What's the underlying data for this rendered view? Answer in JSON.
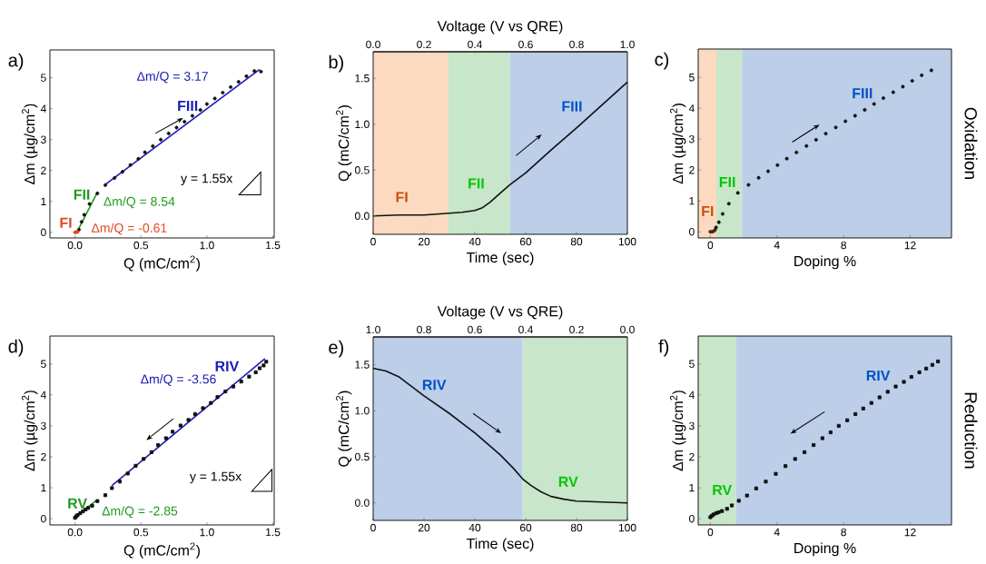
{
  "chart_data": [
    {
      "type": "scatter",
      "title": "a)",
      "xlabel": "Q (mC/cm$^{2}$)",
      "ylabel": "Δm (µg/cm$^{2}$)",
      "xlim": [
        -0.19,
        1.51
      ],
      "ylim": [
        -0.18,
        5.9
      ],
      "xticks": [
        {
          "value": 0,
          "label": "0.0"
        },
        {
          "value": 0.5,
          "label": "0.5"
        },
        {
          "value": 1,
          "label": "1.0"
        },
        {
          "value": 1.5,
          "label": "1.5"
        }
      ],
      "yticks": [
        0,
        1,
        2,
        3,
        4,
        5
      ],
      "series": [
        {
          "type": "scatter",
          "marker": "circle",
          "color": "#111111",
          "x": [
            0.03,
            0.05,
            0.07,
            0.11,
            0.17,
            0.23,
            0.3,
            0.36,
            0.42,
            0.48,
            0.53,
            0.59,
            0.65,
            0.71,
            0.77,
            0.83,
            0.89,
            0.95,
            1.0,
            1.06,
            1.12,
            1.18,
            1.24,
            1.3,
            1.36,
            1.41
          ],
          "values": [
            0.09,
            0.34,
            0.57,
            0.92,
            1.26,
            1.53,
            1.76,
            1.96,
            2.18,
            2.38,
            2.59,
            2.79,
            3.0,
            3.2,
            3.39,
            3.58,
            3.77,
            3.96,
            4.15,
            4.33,
            4.52,
            4.7,
            4.87,
            5.05,
            5.22,
            5.2
          ]
        },
        {
          "type": "scatter",
          "marker": "circle",
          "name": "FI",
          "color": "#e2461e",
          "x": [
            0,
            0.01,
            0.02
          ],
          "values": [
            0,
            0.01,
            0.02
          ]
        },
        {
          "type": "line",
          "name": "FII",
          "color": "#1f9a1f",
          "x": [
            0.02,
            0.17
          ],
          "values": [
            0.05,
            1.3
          ]
        },
        {
          "type": "line",
          "name": "FIII",
          "color": "#1c1cb4",
          "x": [
            0.23,
            1.4
          ],
          "values": [
            1.55,
            5.27
          ]
        }
      ],
      "annotations": [
        "Δm/Q = 3.17",
        "Δm/Q = 8.54",
        "Δm/Q = -0.61",
        "y = 1.55x"
      ]
    },
    {
      "type": "line",
      "title": "b)",
      "xlabel": "Time (sec)",
      "ylabel": "Q (mC/cm$^{2}$)",
      "x2label": "Voltage (V vs QRE)",
      "xlim": [
        0,
        100
      ],
      "ylim": [
        -0.2,
        1.79
      ],
      "x2lim": [
        0,
        1
      ],
      "xticks": [
        0,
        20,
        40,
        60,
        80,
        100
      ],
      "yticks": [
        {
          "value": 0,
          "label": "0.0"
        },
        {
          "value": 0.5,
          "label": "0.5"
        },
        {
          "value": 1,
          "label": "1.0"
        },
        {
          "value": 1.5,
          "label": "1.5"
        }
      ],
      "x2ticks": [
        {
          "value": 0,
          "label": "0.0"
        },
        {
          "value": 0.2,
          "label": "0.2"
        },
        {
          "value": 0.4,
          "label": "0.4"
        },
        {
          "value": 0.6,
          "label": "0.6"
        },
        {
          "value": 0.8,
          "label": "0.8"
        },
        {
          "value": 1,
          "label": "1.0"
        }
      ],
      "bands": [
        {
          "axis": "x",
          "from": 0,
          "to": 29.6,
          "label": "FI",
          "color": "#fcd9c1"
        },
        {
          "axis": "x",
          "from": 29.6,
          "to": 53.8,
          "label": "FII",
          "color": "#c8e6c9"
        },
        {
          "axis": "x",
          "from": 53.8,
          "to": 100,
          "label": "FIII",
          "color": "#bccee8"
        }
      ],
      "series": [
        {
          "color": "#111111",
          "x": [
            0,
            10,
            20,
            30,
            35,
            40,
            43,
            46,
            50,
            53.8,
            60,
            70,
            80,
            90,
            100
          ],
          "values": [
            0,
            0.01,
            0.01,
            0.03,
            0.04,
            0.06,
            0.09,
            0.15,
            0.25,
            0.34,
            0.47,
            0.72,
            0.96,
            1.21,
            1.46
          ]
        }
      ]
    },
    {
      "type": "scatter",
      "title": "c)",
      "xlabel": "Doping %",
      "ylabel": "Δm (µg/cm$^{2}$)",
      "xlim": [
        -0.73,
        14.48
      ],
      "ylim": [
        -0.2,
        5.92
      ],
      "xticks": [
        0,
        4,
        8,
        12
      ],
      "yticks": [
        0,
        1,
        2,
        3,
        4,
        5
      ],
      "bands": [
        {
          "axis": "x",
          "from": -0.73,
          "to": 0.36,
          "label": "FI",
          "color": "#fcd9c1"
        },
        {
          "axis": "x",
          "from": 0.36,
          "to": 1.9,
          "label": "FII",
          "color": "#c8e6c9"
        },
        {
          "axis": "x",
          "from": 1.9,
          "to": 14.48,
          "label": "FIII",
          "color": "#bccee8"
        }
      ],
      "series": [
        {
          "type": "scatter",
          "marker": "circle",
          "color": "#4a2a18",
          "x": [
            0,
            0.1,
            0.2,
            0.28
          ],
          "values": [
            0,
            0,
            0.02,
            0.06
          ]
        },
        {
          "type": "scatter",
          "marker": "circle",
          "color": "#111111",
          "x": [
            0.34,
            0.51,
            0.74,
            1.11,
            1.65,
            2.29,
            2.9,
            3.47,
            4.03,
            4.59,
            5.17,
            5.77,
            6.35,
            6.93,
            7.53,
            8.11,
            8.69,
            9.27,
            9.83,
            10.39,
            10.98,
            11.56,
            12.12,
            12.69,
            13.27
          ],
          "values": [
            0.14,
            0.31,
            0.58,
            0.91,
            1.26,
            1.52,
            1.75,
            1.96,
            2.16,
            2.37,
            2.57,
            2.78,
            2.98,
            3.18,
            3.38,
            3.58,
            3.76,
            3.95,
            4.14,
            4.33,
            4.52,
            4.7,
            4.89,
            5.07,
            5.23
          ]
        }
      ],
      "annotations": [
        "Oxidation"
      ]
    },
    {
      "type": "scatter",
      "title": "d)",
      "xlabel": "Q (mC/cm$^{2}$)",
      "ylabel": "Δm (µg/cm$^{2}$)",
      "xlim": [
        -0.19,
        1.51
      ],
      "ylim": [
        -0.2,
        5.9
      ],
      "xticks": [
        {
          "value": 0,
          "label": "0.0"
        },
        {
          "value": 0.5,
          "label": "0.5"
        },
        {
          "value": 1,
          "label": "1.0"
        },
        {
          "value": 1.5,
          "label": "1.5"
        }
      ],
      "yticks": [
        0,
        1,
        2,
        3,
        4,
        5
      ],
      "series": [
        {
          "type": "scatter",
          "marker": "square",
          "color": "#111111",
          "x": [
            0,
            0.01,
            0.02,
            0.04,
            0.06,
            0.08,
            0.1,
            0.13,
            0.17,
            0.23,
            0.28,
            0.34,
            0.4,
            0.46,
            0.52,
            0.58,
            0.63,
            0.69,
            0.74,
            0.8,
            0.86,
            0.91,
            0.97,
            1.03,
            1.08,
            1.14,
            1.2,
            1.26,
            1.32,
            1.37,
            1.4,
            1.43,
            1.45
          ],
          "values": [
            0.03,
            0.08,
            0.12,
            0.18,
            0.24,
            0.3,
            0.35,
            0.42,
            0.57,
            0.76,
            0.99,
            1.2,
            1.46,
            1.71,
            1.93,
            2.15,
            2.38,
            2.6,
            2.81,
            3.01,
            3.19,
            3.38,
            3.57,
            3.74,
            3.93,
            4.11,
            4.27,
            4.43,
            4.59,
            4.73,
            4.86,
            4.95,
            5.07
          ]
        },
        {
          "type": "line",
          "name": "RV",
          "color": "#1f9a1f",
          "x": [
            0,
            0.17
          ],
          "values": [
            0.05,
            0.62
          ]
        },
        {
          "type": "line",
          "name": "RIV",
          "color": "#1c1cb4",
          "x": [
            0.28,
            1.44
          ],
          "values": [
            1.07,
            5.17
          ]
        }
      ],
      "annotations": [
        "Δm/Q = -3.56",
        "Δm/Q = -2.85",
        "y = 1.55x"
      ]
    },
    {
      "type": "line",
      "title": "e)",
      "xlabel": "Time (sec)",
      "ylabel": "Q (mC/cm$^{2}$)",
      "x2label": "Voltage (V vs QRE)",
      "xlim": [
        0,
        100
      ],
      "ylim": [
        -0.19,
        1.8
      ],
      "x2lim": [
        1,
        0
      ],
      "xticks": [
        0,
        20,
        40,
        60,
        80,
        100
      ],
      "yticks": [
        {
          "value": 0,
          "label": "0.0"
        },
        {
          "value": 0.5,
          "label": "0.5"
        },
        {
          "value": 1,
          "label": "1.0"
        },
        {
          "value": 1.5,
          "label": "1.5"
        }
      ],
      "x2ticks": [
        {
          "value": 1,
          "label": "1.0"
        },
        {
          "value": 0.8,
          "label": "0.8"
        },
        {
          "value": 0.6,
          "label": "0.6"
        },
        {
          "value": 0.4,
          "label": "0.4"
        },
        {
          "value": 0.2,
          "label": "0.2"
        },
        {
          "value": 0,
          "label": "0.0"
        }
      ],
      "bands": [
        {
          "axis": "x",
          "from": 0,
          "to": 58.8,
          "label": "RIV",
          "color": "#bccee8"
        },
        {
          "axis": "x",
          "from": 58.8,
          "to": 100,
          "label": "RV",
          "color": "#c8e6c9"
        }
      ],
      "series": [
        {
          "color": "#111111",
          "x": [
            0,
            5,
            10,
            20,
            30,
            40,
            50,
            55,
            58.8,
            62,
            66,
            70,
            75,
            80,
            90,
            100
          ],
          "values": [
            1.46,
            1.43,
            1.37,
            1.16,
            0.97,
            0.76,
            0.52,
            0.38,
            0.26,
            0.19,
            0.12,
            0.07,
            0.04,
            0.02,
            0.01,
            0
          ]
        }
      ]
    },
    {
      "type": "scatter",
      "title": "f)",
      "xlabel": "Doping %",
      "ylabel": "Δm (µg/cm$^{2}$)",
      "xlim": [
        -0.73,
        14.48
      ],
      "ylim": [
        -0.2,
        5.9
      ],
      "xticks": [
        0,
        4,
        8,
        12
      ],
      "yticks": [
        0,
        1,
        2,
        3,
        4,
        5
      ],
      "bands": [
        {
          "axis": "x",
          "from": -0.73,
          "to": 1.55,
          "label": "RV",
          "color": "#c8e6c9"
        },
        {
          "axis": "x",
          "from": 1.55,
          "to": 14.48,
          "label": "RIV",
          "color": "#bccee8"
        }
      ],
      "series": [
        {
          "type": "scatter",
          "marker": "square",
          "color": "#111111",
          "x": [
            0,
            0.1,
            0.2,
            0.35,
            0.5,
            0.7,
            1.0,
            1.29,
            1.71,
            2.2,
            2.75,
            3.33,
            3.93,
            4.51,
            5.09,
            5.65,
            6.2,
            6.73,
            7.22,
            7.71,
            8.22,
            8.71,
            9.18,
            9.67,
            10.16,
            10.65,
            11.13,
            11.62,
            12.07,
            12.55,
            12.96,
            13.33,
            13.67
          ],
          "values": [
            0.05,
            0.1,
            0.14,
            0.18,
            0.21,
            0.25,
            0.32,
            0.43,
            0.58,
            0.75,
            0.98,
            1.2,
            1.45,
            1.7,
            1.93,
            2.15,
            2.38,
            2.6,
            2.79,
            3.0,
            3.18,
            3.38,
            3.56,
            3.74,
            3.92,
            4.1,
            4.27,
            4.42,
            4.58,
            4.73,
            4.85,
            4.97,
            5.08
          ]
        }
      ],
      "annotations": [
        "Reduction"
      ]
    }
  ]
}
